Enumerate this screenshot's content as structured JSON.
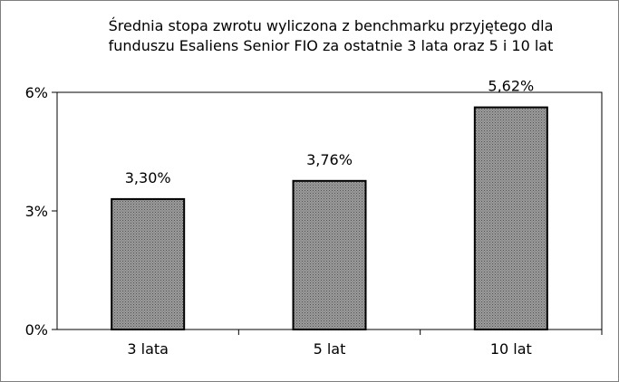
{
  "chart_data": {
    "type": "bar",
    "title_lines": [
      "Średnia stopa zwrotu wyliczona z benchmarku przyjętego dla",
      "funduszu Esaliens Senior FIO za ostatnie 3 lata oraz 5 i 10 lat"
    ],
    "categories": [
      "3 lata",
      "5 lat",
      "10 lat"
    ],
    "values": [
      3.3,
      3.76,
      5.62
    ],
    "data_labels": [
      "3,30%",
      "3,76%",
      "5,62%"
    ],
    "yticks": [
      {
        "value": 0,
        "label": "0%"
      },
      {
        "value": 3,
        "label": "3%"
      },
      {
        "value": 6,
        "label": "6%"
      }
    ],
    "ylim": [
      0,
      6
    ],
    "grid": false,
    "legend": "none",
    "bar_color": "#808080",
    "bar_pattern": "dotted-gray"
  }
}
